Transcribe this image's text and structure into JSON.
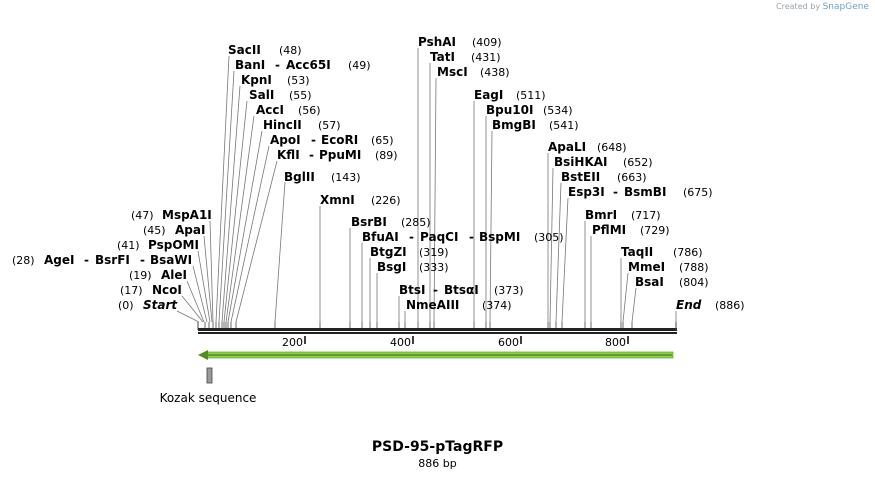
{
  "credit": {
    "prefix": "Created by",
    "brand": "SnapGene"
  },
  "plasmid": {
    "name": "PSD-95-pTagRFP",
    "length_label": "886 bp",
    "length": 886
  },
  "start_label": {
    "name": "Start",
    "pos": "(0)"
  },
  "end_label": {
    "name": "End",
    "pos": "(886)"
  },
  "ticks": [
    "200",
    "400",
    "600",
    "800"
  ],
  "feature": {
    "label": "Kozak sequence",
    "arrow_color": "#8fd44a"
  },
  "sites": [
    {
      "name": "SacII",
      "pos": "(48)"
    },
    {
      "name": "BanI",
      "alt": "Acc65I",
      "pos": "(49)"
    },
    {
      "name": "KpnI",
      "pos": "(53)"
    },
    {
      "name": "SalI",
      "pos": "(55)"
    },
    {
      "name": "AccI",
      "pos": "(56)"
    },
    {
      "name": "HincII",
      "pos": "(57)"
    },
    {
      "name": "ApoI",
      "alt": "EcoRI",
      "pos": "(65)"
    },
    {
      "name": "KflI",
      "alt": "PpuMI",
      "pos": "(89)"
    },
    {
      "name": "BglII",
      "pos": "(143)"
    },
    {
      "name": "XmnI",
      "pos": "(226)"
    },
    {
      "name": "BsrBI",
      "pos": "(285)"
    },
    {
      "name": "BfuAI",
      "alt": "PaqCI",
      "alt2": "BspMI",
      "pos": "(305)"
    },
    {
      "name": "BtgZI",
      "pos": "(319)"
    },
    {
      "name": "BsgI",
      "pos": "(333)"
    },
    {
      "name": "BtsI",
      "alt": "BtsαI",
      "pos": "(373)"
    },
    {
      "name": "NmeAIII",
      "pos": "(374)"
    },
    {
      "name": "PshAI",
      "pos": "(409)"
    },
    {
      "name": "TatI",
      "pos": "(431)"
    },
    {
      "name": "MscI",
      "pos": "(438)"
    },
    {
      "name": "EagI",
      "pos": "(511)"
    },
    {
      "name": "Bpu10I",
      "pos": "(534)"
    },
    {
      "name": "BmgBI",
      "pos": "(541)"
    },
    {
      "name": "ApaLI",
      "pos": "(648)"
    },
    {
      "name": "BsiHKAI",
      "pos": "(652)"
    },
    {
      "name": "BstEII",
      "pos": "(663)"
    },
    {
      "name": "Esp3I",
      "alt": "BsmBI",
      "pos": "(675)"
    },
    {
      "name": "BmrI",
      "pos": "(717)"
    },
    {
      "name": "PflMI",
      "pos": "(729)"
    },
    {
      "name": "TaqII",
      "pos": "(786)"
    },
    {
      "name": "MmeI",
      "pos": "(788)"
    },
    {
      "name": "BsaI",
      "pos": "(804)"
    },
    {
      "name": "MspA1I",
      "pos": "(47)"
    },
    {
      "name": "ApaI",
      "pos": "(45)"
    },
    {
      "name": "PspOMI",
      "pos": "(41)"
    },
    {
      "name": "AgeI",
      "alt": "BsrFI",
      "alt2": "BsaWI",
      "pos": "(28)"
    },
    {
      "name": "AleI",
      "pos": "(19)"
    },
    {
      "name": "NcoI",
      "pos": "(17)"
    }
  ]
}
